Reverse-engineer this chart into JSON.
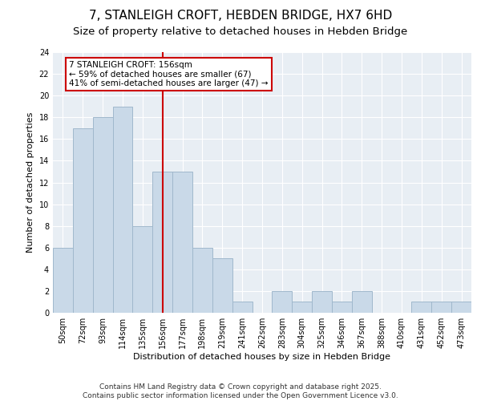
{
  "title_line1": "7, STANLEIGH CROFT, HEBDEN BRIDGE, HX7 6HD",
  "title_line2": "Size of property relative to detached houses in Hebden Bridge",
  "xlabel": "Distribution of detached houses by size in Hebden Bridge",
  "ylabel": "Number of detached properties",
  "bar_color": "#c9d9e8",
  "bar_edge_color": "#a0b8cc",
  "categories": [
    "50sqm",
    "72sqm",
    "93sqm",
    "114sqm",
    "135sqm",
    "156sqm",
    "177sqm",
    "198sqm",
    "219sqm",
    "241sqm",
    "262sqm",
    "283sqm",
    "304sqm",
    "325sqm",
    "346sqm",
    "367sqm",
    "388sqm",
    "410sqm",
    "431sqm",
    "452sqm",
    "473sqm"
  ],
  "values": [
    6,
    17,
    18,
    19,
    8,
    13,
    13,
    6,
    5,
    1,
    0,
    2,
    1,
    2,
    1,
    2,
    0,
    0,
    1,
    1,
    1
  ],
  "vline_x": 5,
  "vline_color": "#cc0000",
  "annotation_text": "7 STANLEIGH CROFT: 156sqm\n← 59% of detached houses are smaller (67)\n41% of semi-detached houses are larger (47) →",
  "annotation_box_color": "#ffffff",
  "annotation_box_edge_color": "#cc0000",
  "ylim": [
    0,
    24
  ],
  "yticks": [
    0,
    2,
    4,
    6,
    8,
    10,
    12,
    14,
    16,
    18,
    20,
    22,
    24
  ],
  "background_color": "#e8eef4",
  "grid_color": "#ffffff",
  "footer_text": "Contains HM Land Registry data © Crown copyright and database right 2025.\nContains public sector information licensed under the Open Government Licence v3.0.",
  "title_fontsize": 11,
  "subtitle_fontsize": 9.5,
  "axis_label_fontsize": 8,
  "tick_fontsize": 7,
  "annotation_fontsize": 7.5,
  "footer_fontsize": 6.5
}
